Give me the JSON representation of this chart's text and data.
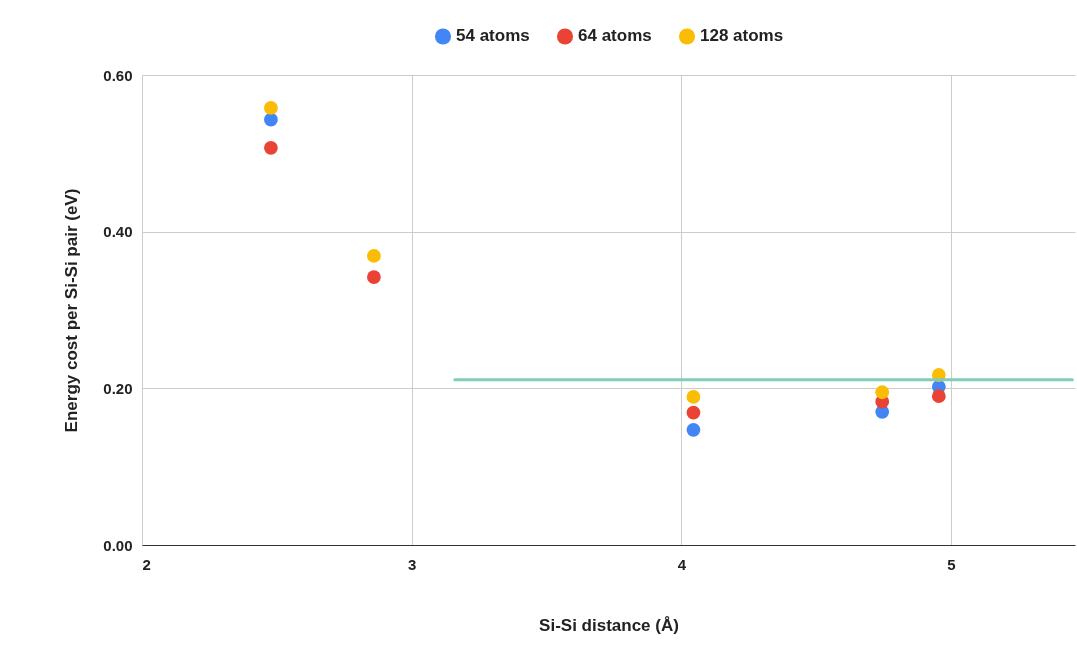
{
  "chart_data": {
    "type": "scatter",
    "xlabel": "Si-Si distance (Å)",
    "ylabel": "Energy cost per Si-Si pair (eV)",
    "xlim": [
      2,
      5.46
    ],
    "xticks": [
      2,
      3,
      4,
      5
    ],
    "ylim": [
      0,
      0.6
    ],
    "yticks": [
      {
        "value": 0,
        "label": "0.00"
      },
      {
        "value": 0.2,
        "label": "0.20"
      },
      {
        "value": 0.4,
        "label": "0.40"
      },
      {
        "value": 0.6,
        "label": "0.60"
      }
    ],
    "x": [
      2.478,
      2.86,
      4.045,
      4.745,
      4.955
    ],
    "series": [
      {
        "name": "54 atoms",
        "color": "#4285f4",
        "values": [
          0.543,
          null,
          0.147,
          0.17,
          0.202
        ]
      },
      {
        "name": "64 atoms",
        "color": "#ea4335",
        "values": [
          0.507,
          0.342,
          0.169,
          0.183,
          0.19
        ]
      },
      {
        "name": "128 atoms",
        "color": "#fbbc04",
        "values": [
          0.558,
          0.369,
          0.189,
          0.195,
          0.217
        ]
      },
      {
        "type": "line",
        "marker": "none",
        "color": "#7fcdb8",
        "x": [
          3.16,
          5.45
        ],
        "values": [
          0.211,
          0.211
        ]
      }
    ],
    "grid": true,
    "legend": "top",
    "marker": "circle"
  }
}
